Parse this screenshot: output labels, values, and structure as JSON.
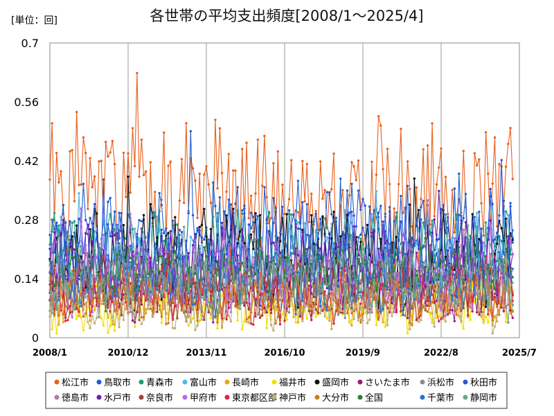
{
  "chart_data": {
    "type": "line",
    "title": "各世帯の平均支出頻度[2008/1～2025/4]",
    "unit_label": "[単位：回]",
    "ylim": [
      0,
      0.7
    ],
    "yticks": [
      "0",
      "0.14",
      "0.28",
      "0.42",
      "0.56",
      "0.7"
    ],
    "ytick_values": [
      0,
      0.14,
      0.28,
      0.42,
      0.56,
      0.7
    ],
    "x_range": [
      "2008/1",
      "2025/7"
    ],
    "xticks": [
      "2008/1",
      "2010/12",
      "2013/11",
      "2016/10",
      "2019/9",
      "2022/8",
      "2025/7"
    ],
    "grid": "vertical",
    "legend_position": "bottom",
    "series": [
      {
        "name": "松江市",
        "color": "#e8601c",
        "base": 0.34,
        "amp": 0.13,
        "seed": 1
      },
      {
        "name": "鳥取市",
        "color": "#1a5fd1",
        "base": 0.24,
        "amp": 0.1,
        "seed": 2
      },
      {
        "name": "青森市",
        "color": "#1b9e77",
        "base": 0.2,
        "amp": 0.08,
        "seed": 3
      },
      {
        "name": "富山市",
        "color": "#56b4e9",
        "base": 0.19,
        "amp": 0.08,
        "seed": 4
      },
      {
        "name": "長崎市",
        "color": "#e6a817",
        "base": 0.09,
        "amp": 0.05,
        "seed": 5
      },
      {
        "name": "福井市",
        "color": "#f0e000",
        "base": 0.08,
        "amp": 0.05,
        "seed": 6
      },
      {
        "name": "盛岡市",
        "color": "#111111",
        "base": 0.19,
        "amp": 0.09,
        "seed": 7
      },
      {
        "name": "さいたま市",
        "color": "#9c1a7a",
        "base": 0.12,
        "amp": 0.06,
        "seed": 8
      },
      {
        "name": "浜松市",
        "color": "#8c8c96",
        "base": 0.12,
        "amp": 0.06,
        "seed": 9
      },
      {
        "name": "秋田市",
        "color": "#2f55d4",
        "base": 0.22,
        "amp": 0.09,
        "seed": 10
      },
      {
        "name": "徳島市",
        "color": "#b07aa1",
        "base": 0.13,
        "amp": 0.06,
        "seed": 11
      },
      {
        "name": "水戸市",
        "color": "#6a1fae",
        "base": 0.17,
        "amp": 0.08,
        "seed": 12
      },
      {
        "name": "奈良市",
        "color": "#a83a3a",
        "base": 0.11,
        "amp": 0.05,
        "seed": 13
      },
      {
        "name": "甲府市",
        "color": "#b36ae2",
        "base": 0.15,
        "amp": 0.07,
        "seed": 14
      },
      {
        "name": "東京都区部",
        "color": "#d7263d",
        "base": 0.1,
        "amp": 0.05,
        "seed": 15
      },
      {
        "name": "神戸市",
        "color": "#bcb07a",
        "base": 0.08,
        "amp": 0.05,
        "seed": 16
      },
      {
        "name": "大分市",
        "color": "#cc7a1f",
        "base": 0.1,
        "amp": 0.05,
        "seed": 17
      },
      {
        "name": "全国",
        "color": "#2e7d32",
        "base": 0.16,
        "amp": 0.04,
        "seed": 18
      },
      {
        "name": "千葉市",
        "color": "#2873c9",
        "base": 0.15,
        "amp": 0.07,
        "seed": 19
      },
      {
        "name": "静岡市",
        "color": "#6aa88f",
        "base": 0.14,
        "amp": 0.06,
        "seed": 20
      }
    ]
  }
}
